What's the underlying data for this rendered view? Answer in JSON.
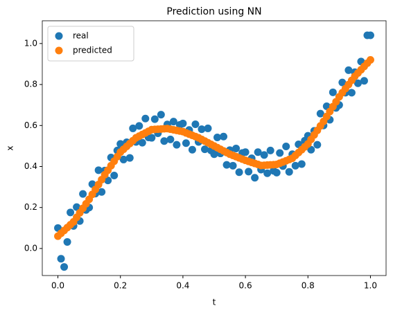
{
  "chart_data": {
    "type": "scatter",
    "title": "Prediction using NN",
    "xlabel": "t",
    "ylabel": "x",
    "x": [
      0,
      0.01,
      0.02,
      0.03,
      0.04,
      0.05,
      0.06,
      0.07,
      0.08,
      0.09,
      0.1,
      0.11,
      0.12,
      0.13,
      0.14,
      0.15,
      0.16,
      0.17,
      0.18,
      0.19,
      0.2,
      0.21,
      0.22,
      0.23,
      0.24,
      0.25,
      0.26,
      0.27,
      0.28,
      0.29,
      0.3,
      0.31,
      0.32,
      0.33,
      0.34,
      0.35,
      0.36,
      0.37,
      0.38,
      0.39,
      0.4,
      0.41,
      0.42,
      0.43,
      0.44,
      0.45,
      0.46,
      0.47,
      0.48,
      0.49,
      0.5,
      0.51,
      0.52,
      0.53,
      0.54,
      0.55,
      0.56,
      0.57,
      0.58,
      0.59,
      0.6,
      0.61,
      0.62,
      0.63,
      0.64,
      0.65,
      0.66,
      0.67,
      0.68,
      0.69,
      0.7,
      0.71,
      0.72,
      0.73,
      0.74,
      0.75,
      0.76,
      0.77,
      0.78,
      0.79,
      0.8,
      0.81,
      0.82,
      0.83,
      0.84,
      0.85,
      0.86,
      0.87,
      0.88,
      0.89,
      0.9,
      0.91,
      0.92,
      0.93,
      0.94,
      0.95,
      0.96,
      0.97,
      0.98,
      0.99,
      1
    ],
    "series": [
      {
        "name": "real",
        "color": "#1f77b4",
        "values": [
          0.1,
          -0.05,
          -0.09,
          0.032,
          0.176,
          0.11,
          0.202,
          0.134,
          0.266,
          0.188,
          0.2,
          0.314,
          0.268,
          0.382,
          0.276,
          0.38,
          0.332,
          0.444,
          0.356,
          0.478,
          0.51,
          0.434,
          0.518,
          0.442,
          0.586,
          0.52,
          0.598,
          0.516,
          0.634,
          0.542,
          0.54,
          0.631,
          0.562,
          0.653,
          0.524,
          0.605,
          0.532,
          0.619,
          0.506,
          0.603,
          0.61,
          0.514,
          0.578,
          0.482,
          0.606,
          0.52,
          0.582,
          0.484,
          0.586,
          0.478,
          0.46,
          0.542,
          0.464,
          0.546,
          0.408,
          0.48,
          0.404,
          0.488,
          0.372,
          0.466,
          0.47,
          0.375,
          0.44,
          0.345,
          0.47,
          0.385,
          0.456,
          0.367,
          0.478,
          0.379,
          0.37,
          0.466,
          0.402,
          0.498,
          0.374,
          0.46,
          0.404,
          0.508,
          0.412,
          0.526,
          0.55,
          0.482,
          0.574,
          0.506,
          0.658,
          0.6,
          0.694,
          0.628,
          0.762,
          0.686,
          0.7,
          0.81,
          0.76,
          0.87,
          0.76,
          0.86,
          0.806,
          0.912,
          0.818,
          1.04,
          1.04
        ]
      },
      {
        "name": "predicted",
        "color": "#ff7f0e",
        "values": [
          0.06,
          0.074,
          0.088,
          0.102,
          0.116,
          0.13,
          0.152,
          0.174,
          0.196,
          0.218,
          0.24,
          0.264,
          0.288,
          0.312,
          0.336,
          0.36,
          0.382,
          0.404,
          0.426,
          0.448,
          0.47,
          0.484,
          0.498,
          0.512,
          0.526,
          0.54,
          0.548,
          0.556,
          0.564,
          0.572,
          0.58,
          0.581,
          0.582,
          0.583,
          0.584,
          0.585,
          0.582,
          0.579,
          0.576,
          0.573,
          0.57,
          0.564,
          0.558,
          0.552,
          0.546,
          0.54,
          0.532,
          0.524,
          0.516,
          0.508,
          0.5,
          0.492,
          0.484,
          0.476,
          0.468,
          0.46,
          0.454,
          0.448,
          0.442,
          0.436,
          0.43,
          0.425,
          0.42,
          0.415,
          0.41,
          0.405,
          0.406,
          0.407,
          0.408,
          0.409,
          0.41,
          0.416,
          0.422,
          0.428,
          0.434,
          0.44,
          0.454,
          0.468,
          0.482,
          0.496,
          0.51,
          0.532,
          0.554,
          0.576,
          0.598,
          0.62,
          0.644,
          0.668,
          0.692,
          0.716,
          0.74,
          0.76,
          0.78,
          0.8,
          0.82,
          0.84,
          0.856,
          0.872,
          0.888,
          0.904,
          0.92
        ]
      }
    ],
    "xlim": [
      -0.05,
      1.05
    ],
    "xticks": [
      {
        "value": 0,
        "label": "0.0"
      },
      {
        "value": 0.2,
        "label": "0.2"
      },
      {
        "value": 0.4,
        "label": "0.4"
      },
      {
        "value": 0.6,
        "label": "0.6"
      },
      {
        "value": 0.8,
        "label": "0.8"
      },
      {
        "value": 1,
        "label": "1.0"
      }
    ],
    "ylim": [
      -0.132,
      1.111
    ],
    "yticks": [
      {
        "value": 0,
        "label": "0.0"
      },
      {
        "value": 0.2,
        "label": "0.2"
      },
      {
        "value": 0.4,
        "label": "0.4"
      },
      {
        "value": 0.6,
        "label": "0.6"
      },
      {
        "value": 0.8,
        "label": "0.8"
      },
      {
        "value": 1,
        "label": "1.0"
      }
    ],
    "legend": "upper left",
    "grid": false
  }
}
